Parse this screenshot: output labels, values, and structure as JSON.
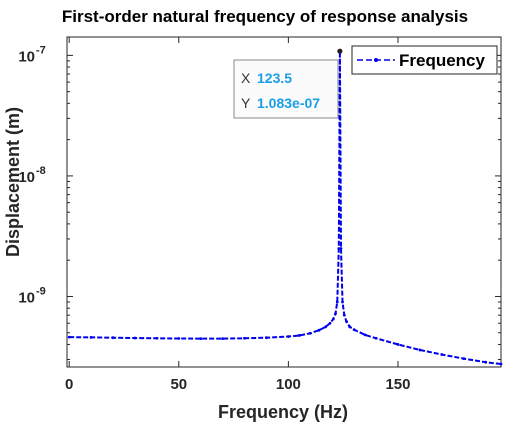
{
  "chart_data": {
    "type": "line",
    "title": "First-order natural frequency of response analysis",
    "xlabel": "Frequency (Hz)",
    "ylabel": "Displacement (m)",
    "x_scale": "linear",
    "y_scale": "log",
    "xlim": [
      -1,
      197
    ],
    "ylim": [
      2.6e-10,
      1.42e-07
    ],
    "x_ticks": [
      0,
      50,
      100,
      150
    ],
    "x_tick_labels": [
      "0",
      "50",
      "100",
      "150"
    ],
    "y_ticks": [
      1e-09,
      1e-08,
      1e-07
    ],
    "y_tick_labels": [
      {
        "base": "10",
        "exp": "-9"
      },
      {
        "base": "10",
        "exp": "-8"
      },
      {
        "base": "10",
        "exp": "-7"
      }
    ],
    "grid": false,
    "legend_position": "top-right",
    "series": [
      {
        "name": "Frequency",
        "color": "#0000ee",
        "line_style": "dashed",
        "marker": "dot",
        "x": [
          0,
          10,
          20,
          30,
          40,
          50,
          60,
          70,
          80,
          90,
          100,
          105,
          110,
          114,
          117,
          119,
          120.5,
          121.5,
          122.3,
          123,
          123.5,
          124,
          124.7,
          125.5,
          126.5,
          128,
          130,
          135,
          140,
          150,
          160,
          170,
          180,
          190,
          197
        ],
        "y": [
          4.6e-10,
          4.58e-10,
          4.55e-10,
          4.52e-10,
          4.5e-10,
          4.48e-10,
          4.47e-10,
          4.47e-10,
          4.5e-10,
          4.55e-10,
          4.65e-10,
          4.75e-10,
          4.95e-10,
          5.25e-10,
          5.6e-10,
          6e-10,
          6.5e-10,
          7.2e-10,
          9e-10,
          2.5e-09,
          1.083e-07,
          2.5e-09,
          9e-10,
          7e-10,
          6.2e-10,
          5.6e-10,
          5.3e-10,
          4.8e-10,
          4.5e-10,
          4e-10,
          3.6e-10,
          3.3e-10,
          3.05e-10,
          2.85e-10,
          2.75e-10
        ]
      }
    ],
    "annotation": {
      "x": 123.5,
      "y": 1.083e-07,
      "x_key": "X",
      "y_key": "Y",
      "x_text": "123.5",
      "y_text": "1.083e-07"
    }
  }
}
